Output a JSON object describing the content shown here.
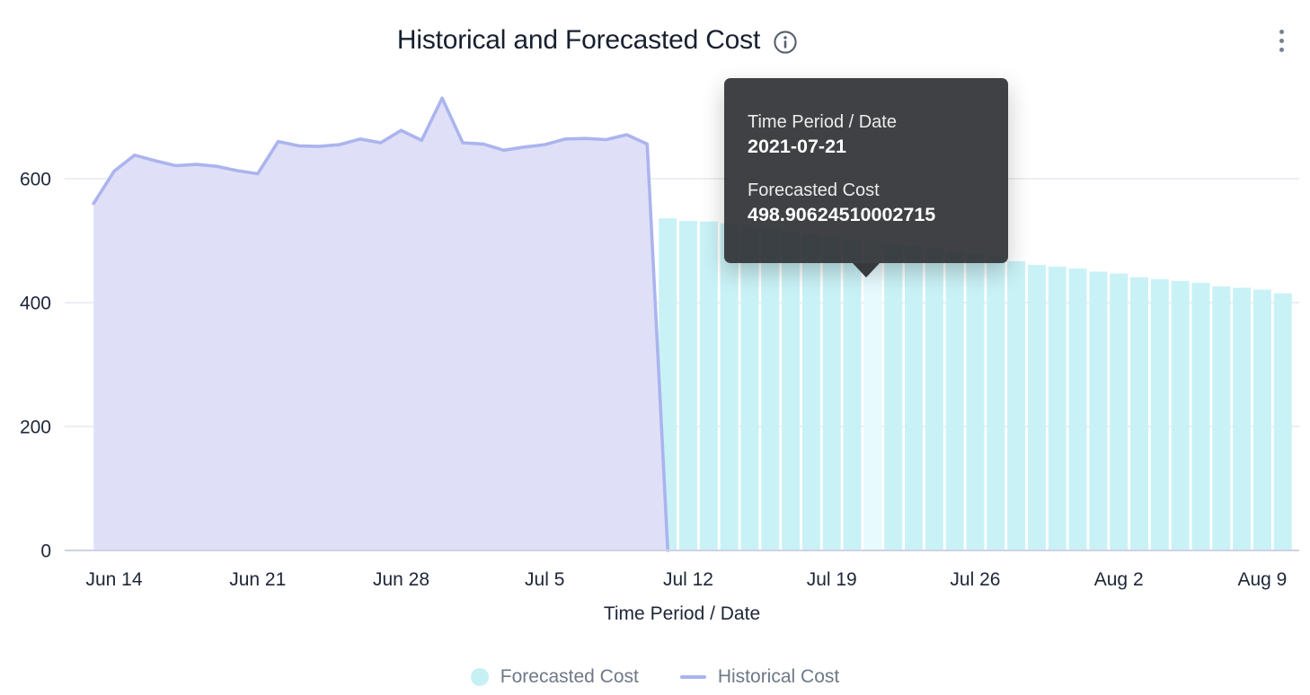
{
  "header": {
    "title": "Historical and Forecasted Cost",
    "info_icon": "info-circle-icon",
    "menu_icon": "kebab-menu-icon"
  },
  "tooltip": {
    "x_label": "Time Period / Date",
    "x_value": "2021-07-21",
    "series_label": "Forecasted Cost",
    "series_value": "498.90624510002715"
  },
  "axes": {
    "x_title": "Time Period / Date",
    "y_ticks": [
      0,
      200,
      400,
      600
    ],
    "x_ticks": [
      {
        "label": "Jun 14",
        "date": "2021-06-14"
      },
      {
        "label": "Jun 21",
        "date": "2021-06-21"
      },
      {
        "label": "Jun 28",
        "date": "2021-06-28"
      },
      {
        "label": "Jul 5",
        "date": "2021-07-05"
      },
      {
        "label": "Jul 12",
        "date": "2021-07-12"
      },
      {
        "label": "Jul 19",
        "date": "2021-07-19"
      },
      {
        "label": "Jul 26",
        "date": "2021-07-26"
      },
      {
        "label": "Aug 2",
        "date": "2021-08-02"
      },
      {
        "label": "Aug 9",
        "date": "2021-08-09"
      }
    ]
  },
  "legend": [
    {
      "label": "Forecasted Cost",
      "swatch": "circle",
      "color": "#c6f0f4"
    },
    {
      "label": "Historical Cost",
      "swatch": "line",
      "color": "#a9b3ee"
    }
  ],
  "colors": {
    "title_text": "#18202f",
    "tick_text": "#1d2637",
    "legend_text": "#6e7887",
    "gridline": "#e9e9ef",
    "axis_line": "#cfd2e2",
    "historical_fill": "#dfe0f7",
    "historical_stroke": "#abb4ee",
    "forecast_bar": "#c9f2f6",
    "forecast_bar_highlight": "#e7fafd",
    "tooltip_bg": "#2a2c30",
    "icon_gray": "#565f6d"
  },
  "chart_data": {
    "type": "mixed-area-bar",
    "title": "Historical and Forecasted Cost",
    "xlabel": "Time Period / Date",
    "ylabel": "",
    "ylim": [
      0,
      760
    ],
    "grid": "horizontal",
    "legend_position": "bottom",
    "start_date": "2021-06-13",
    "series": [
      {
        "name": "Historical Cost",
        "type": "area",
        "dates": [
          "2021-06-13",
          "2021-06-14",
          "2021-06-15",
          "2021-06-16",
          "2021-06-17",
          "2021-06-18",
          "2021-06-19",
          "2021-06-20",
          "2021-06-21",
          "2021-06-22",
          "2021-06-23",
          "2021-06-24",
          "2021-06-25",
          "2021-06-26",
          "2021-06-27",
          "2021-06-28",
          "2021-06-29",
          "2021-06-30",
          "2021-07-01",
          "2021-07-02",
          "2021-07-03",
          "2021-07-04",
          "2021-07-05",
          "2021-07-06",
          "2021-07-07",
          "2021-07-08",
          "2021-07-09",
          "2021-07-10",
          "2021-07-11"
        ],
        "values": [
          560,
          612,
          638,
          629,
          621,
          623,
          620,
          613,
          608,
          660,
          653,
          652,
          655,
          664,
          658,
          678,
          662,
          730,
          658,
          656,
          646,
          651,
          655,
          664,
          665,
          663,
          671,
          656,
          0
        ]
      },
      {
        "name": "Forecasted Cost",
        "type": "bar",
        "highlighted_date": "2021-07-21",
        "dates": [
          "2021-07-11",
          "2021-07-12",
          "2021-07-13",
          "2021-07-14",
          "2021-07-15",
          "2021-07-16",
          "2021-07-17",
          "2021-07-18",
          "2021-07-19",
          "2021-07-20",
          "2021-07-21",
          "2021-07-22",
          "2021-07-23",
          "2021-07-24",
          "2021-07-25",
          "2021-07-26",
          "2021-07-27",
          "2021-07-28",
          "2021-07-29",
          "2021-07-30",
          "2021-07-31",
          "2021-08-01",
          "2021-08-02",
          "2021-08-03",
          "2021-08-04",
          "2021-08-05",
          "2021-08-06",
          "2021-08-07",
          "2021-08-08",
          "2021-08-09",
          "2021-08-10"
        ],
        "values": [
          536,
          532,
          531,
          528,
          524,
          519,
          514,
          510,
          506,
          502,
          498.90624510002715,
          495,
          491,
          487,
          483,
          478,
          473,
          467,
          461,
          458,
          455,
          450,
          447,
          441,
          438,
          435,
          432,
          426,
          424,
          421,
          415
        ]
      }
    ]
  }
}
